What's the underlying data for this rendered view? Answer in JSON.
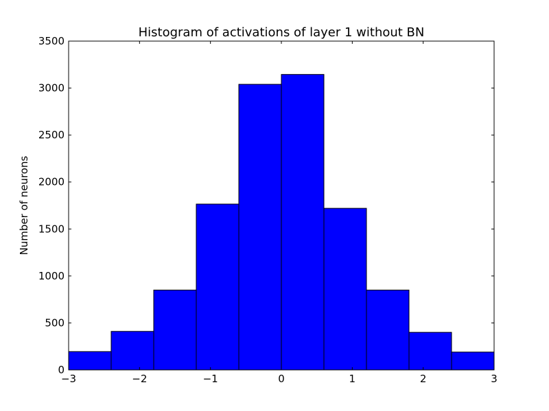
{
  "chart_data": {
    "type": "bar",
    "title": "Histogram of activations of layer 1  without BN",
    "xlabel": "",
    "ylabel": "Number of neurons",
    "xlim": [
      -3,
      3
    ],
    "ylim": [
      0,
      3500
    ],
    "grid": false,
    "bin_edges": [
      -3,
      -2.4,
      -1.8,
      -1.2,
      -0.6,
      0,
      0.6,
      1.2,
      1.8,
      2.4,
      3
    ],
    "values": [
      195,
      410,
      850,
      1765,
      3040,
      3145,
      1720,
      850,
      400,
      190
    ],
    "x_ticks": [
      {
        "value": -3,
        "label": "−3"
      },
      {
        "value": -2,
        "label": "−2"
      },
      {
        "value": -1,
        "label": "−1"
      },
      {
        "value": 0,
        "label": "0"
      },
      {
        "value": 1,
        "label": "1"
      },
      {
        "value": 2,
        "label": "2"
      },
      {
        "value": 3,
        "label": "3"
      }
    ],
    "y_ticks": [
      {
        "value": 0,
        "label": "0"
      },
      {
        "value": 500,
        "label": "500"
      },
      {
        "value": 1000,
        "label": "1000"
      },
      {
        "value": 1500,
        "label": "1500"
      },
      {
        "value": 2000,
        "label": "2000"
      },
      {
        "value": 2500,
        "label": "2500"
      },
      {
        "value": 3000,
        "label": "3000"
      },
      {
        "value": 3500,
        "label": "3500"
      }
    ],
    "colors": {
      "bar_fill": "#0000ff",
      "bar_edge": "#000000",
      "axes": "#000000"
    }
  }
}
